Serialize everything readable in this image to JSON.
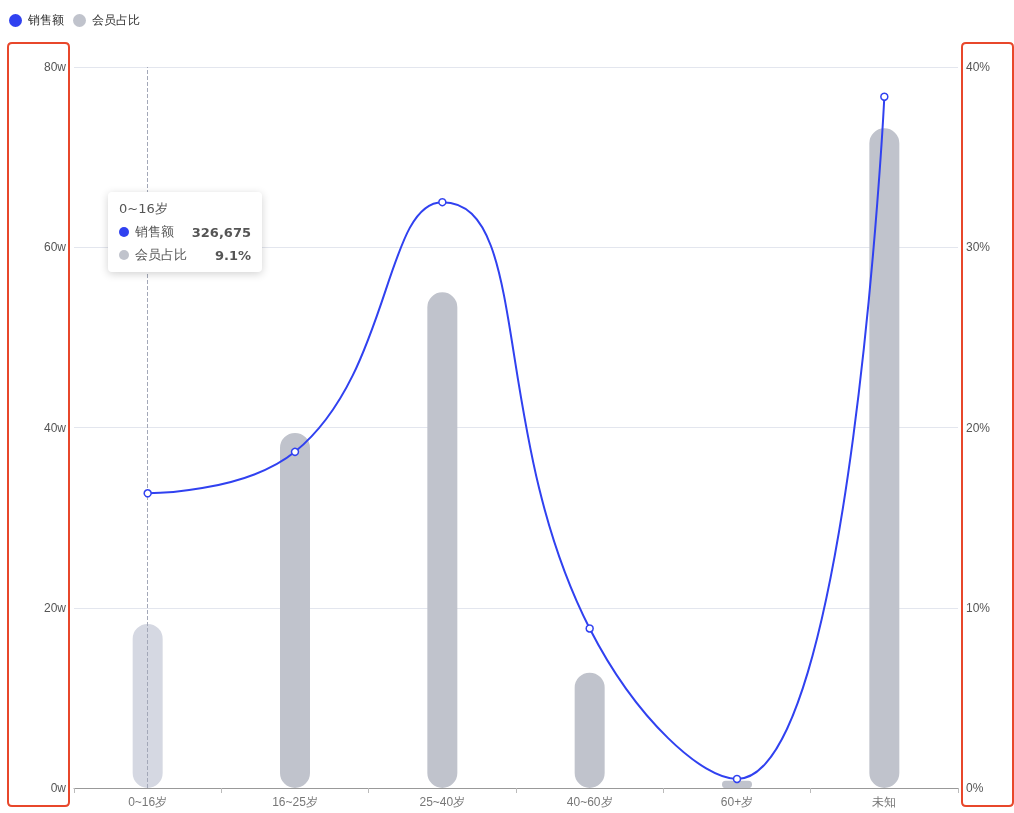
{
  "chart_data": {
    "type": "bar",
    "categories": [
      "0~16岁",
      "16~25岁",
      "25~40岁",
      "40~60岁",
      "60+岁",
      "未知"
    ],
    "series": [
      {
        "name": "销售额",
        "type": "line",
        "color": "#3041f0",
        "values": [
          32.7,
          37.3,
          65,
          17.7,
          1,
          76.7
        ]
      },
      {
        "name": "会员占比",
        "type": "bar",
        "axis": "y2",
        "color": "#c0c3cc",
        "colors": [
          "#d5d8e2",
          "#c0c3cc",
          "#c0c3cc",
          "#c0c3cc",
          "#c0c3cc",
          "#c0c3cc"
        ],
        "values": [
          9.1,
          19.7,
          27.5,
          6.4,
          0.4,
          36.6
        ]
      }
    ],
    "ylim": [
      0,
      80
    ],
    "yticks": [
      {
        "value": 0,
        "label": "0w"
      },
      {
        "value": 20,
        "label": "20w"
      },
      {
        "value": 40,
        "label": "40w"
      },
      {
        "value": 60,
        "label": "60w"
      },
      {
        "value": 80,
        "label": "80w"
      }
    ],
    "y2lim": [
      0,
      40
    ],
    "y2ticks": [
      {
        "value": 0,
        "label": "0%"
      },
      {
        "value": 10,
        "label": "10%"
      },
      {
        "value": 20,
        "label": "20%"
      },
      {
        "value": 30,
        "label": "30%"
      },
      {
        "value": 40,
        "label": "40%"
      }
    ],
    "ref_lines": [
      {
        "axis": "x",
        "value": "0~16岁",
        "label": null,
        "color": "#a3a8b8",
        "line_style": "dashed"
      }
    ],
    "annotations": [
      "0~16岁",
      "326,675",
      "9.1%"
    ],
    "grid": "y",
    "legend": "top left",
    "marker": "circle",
    "line_style": "solid"
  }
}
